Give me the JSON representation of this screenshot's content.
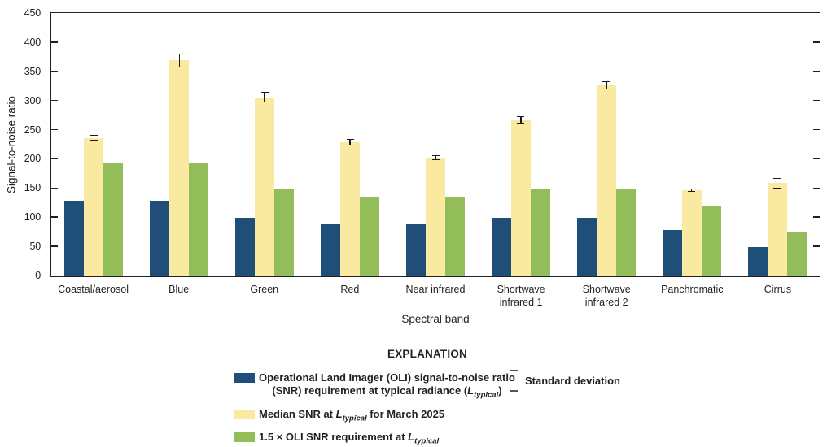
{
  "chart_data": {
    "type": "bar",
    "title": "",
    "xlabel": "Spectral band",
    "ylabel": "Signal-to-noise ratio",
    "ylim": [
      0,
      450
    ],
    "yticks": [
      0,
      50,
      100,
      150,
      200,
      250,
      300,
      350,
      400,
      450
    ],
    "grid": false,
    "legend_position": "below",
    "categories": [
      "Coastal/aerosol",
      "Blue",
      "Green",
      "Red",
      "Near infrared",
      "Shortwave\ninfrared 1",
      "Shortwave\ninfrared 2",
      "Panchromatic",
      "Cirrus"
    ],
    "series": [
      {
        "key": "oli-snr-requirement",
        "name": "Operational Land Imager (OLI) signal-to-noise ratio (SNR) requirement at typical radiance (Ltypical)",
        "color": "#1f4e79",
        "values": [
          130,
          130,
          100,
          90,
          90,
          100,
          100,
          80,
          50
        ]
      },
      {
        "key": "median-snr-march-2025",
        "name": "Median SNR at Ltypical for March 2025",
        "color": "#fae9a1",
        "values": [
          237,
          370,
          307,
          230,
          203,
          268,
          327,
          148,
          160
        ],
        "std_dev": [
          5,
          12,
          9,
          6,
          4,
          6,
          7,
          3,
          9
        ]
      },
      {
        "key": "oli-snr-requirement-1-5x",
        "name": "1.5 × OLI SNR requirement at Ltypical",
        "color": "#92bd58",
        "values": [
          195,
          195,
          150,
          135,
          135,
          150,
          150,
          120,
          75
        ]
      }
    ],
    "error_bar_color": "#1a1a1a"
  },
  "legend": {
    "title": "EXPLANATION",
    "items": [
      {
        "swatch_color": "#1f4e79",
        "line1": "Operational Land Imager (OLI) signal-to-noise ratio",
        "line2_pre": "(SNR) requirement at typical radiance (",
        "var": "L",
        "sub": "typical",
        "line2_post": ")"
      },
      {
        "swatch_color": "#fae9a1",
        "pre": "Median SNR at ",
        "var": "L",
        "sub": "typical",
        "post": " for March 2025"
      },
      {
        "swatch_color": "#92bd58",
        "pre": "1.5 × OLI SNR requirement at ",
        "var": "L",
        "sub": "typical",
        "post": ""
      }
    ],
    "std_dev": {
      "icon": "error-bar-icon",
      "icon_color": "#55565a",
      "label": "Standard deviation"
    }
  }
}
